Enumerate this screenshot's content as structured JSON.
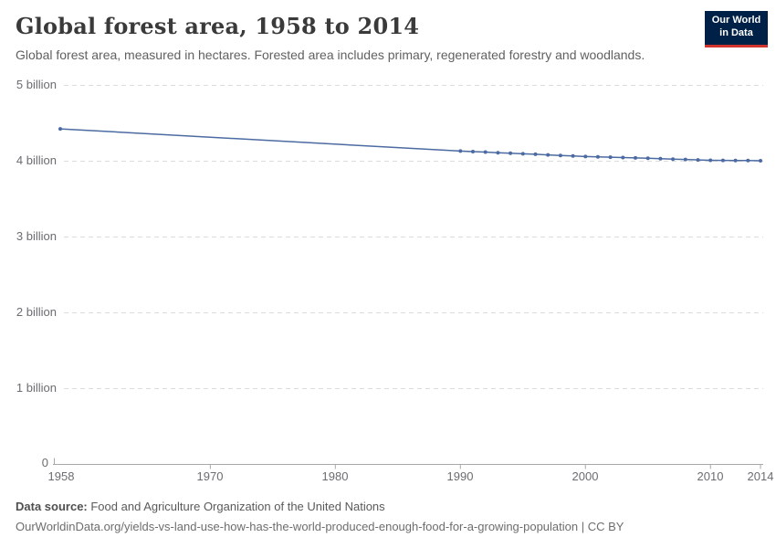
{
  "header": {
    "title": "Global forest area, 1958 to 2014",
    "subtitle": "Global forest area, measured in hectares. Forested area includes primary, regenerated forestry and woodlands.",
    "logo": {
      "line1": "Our World",
      "line2": "in Data",
      "bg_color": "#002147",
      "accent_color": "#d1332e"
    }
  },
  "chart_data": {
    "type": "line",
    "title": "Global forest area, 1958 to 2014",
    "ylabel": "",
    "xlabel": "",
    "unit": "hectares",
    "grid": "horizontal-dashed",
    "legend_position": "none",
    "xlim": [
      1958,
      2014
    ],
    "ylim": [
      0,
      5000000000
    ],
    "line_color": "#4c6ba2",
    "series_name": "Global forest area",
    "x": [
      1958,
      1990,
      1991,
      1992,
      1993,
      1994,
      1995,
      1996,
      1997,
      1998,
      1999,
      2000,
      2001,
      2002,
      2003,
      2004,
      2005,
      2006,
      2007,
      2008,
      2009,
      2010,
      2011,
      2012,
      2013,
      2014
    ],
    "values_billion_ha": [
      4.42,
      4.128,
      4.121,
      4.114,
      4.106,
      4.099,
      4.092,
      4.085,
      4.077,
      4.07,
      4.063,
      4.056,
      4.051,
      4.047,
      4.042,
      4.037,
      4.033,
      4.027,
      4.022,
      4.017,
      4.011,
      4.006,
      4.005,
      4.003,
      4.002,
      4.0
    ],
    "y_tick_values": [
      0,
      1,
      2,
      3,
      4,
      5
    ],
    "y_tick_labels": [
      "0",
      "1 billion",
      "2 billion",
      "3 billion",
      "4 billion",
      "5 billion"
    ],
    "x_tick_labels": [
      "1958",
      "1970",
      "1980",
      "1990",
      "2000",
      "2010",
      "2014"
    ],
    "x_tick_years": [
      1958,
      1970,
      1980,
      1990,
      2000,
      2010,
      2014
    ]
  },
  "footer": {
    "source_label": "Data source:",
    "source_value": " Food and Agriculture Organization of the United Nations",
    "note": "OurWorldinData.org/yields-vs-land-use-how-has-the-world-produced-enough-food-for-a-growing-population | CC BY"
  }
}
